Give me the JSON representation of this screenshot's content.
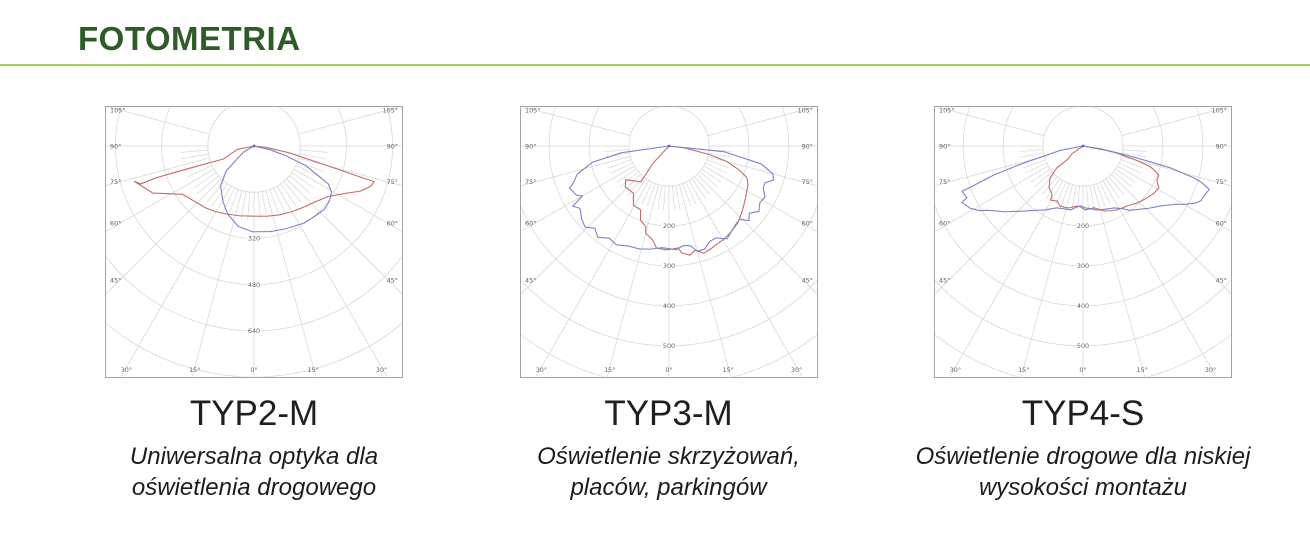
{
  "header": {
    "title": "FOTOMETRIA"
  },
  "colors": {
    "title_green": "#2d5c26",
    "rule_green": "#a7cd67",
    "grid": "#d8d8d8",
    "chart_border": "#a3a3a3",
    "tick_label": "#5f5f5f",
    "red_curve": "#c0706a",
    "blue_curve": "#8181c4",
    "apex_dot": "#6565b5"
  },
  "chart_data": [
    {
      "type": "line",
      "polar": true,
      "title": "TYP2-M",
      "subtitle": "Uniwersalna optyka dla oświetlenia drogowego",
      "angle_ticks_deg": [
        0,
        15,
        30,
        45,
        60,
        75,
        90,
        105
      ],
      "radial_ticks": [
        320,
        480,
        640
      ],
      "radial_step": 160,
      "axis_range_units": 800,
      "grid": true,
      "legend": "none",
      "series": [
        {
          "name": "red-curve",
          "color": "#c0706a",
          "points": [
            [
              -86,
              0
            ],
            [
              -78,
              60
            ],
            [
              -67,
              115
            ],
            [
              -71,
              236
            ],
            [
              -72,
              358
            ],
            [
              -71.5,
              414
            ],
            [
              -73.5,
              432
            ],
            [
              -65,
              386
            ],
            [
              -56,
              299
            ],
            [
              -47,
              281
            ],
            [
              -38,
              272
            ],
            [
              -30,
              263
            ],
            [
              -22,
              254
            ],
            [
              -12,
              247
            ],
            [
              0,
              243
            ],
            [
              10,
              247
            ],
            [
              20,
              254
            ],
            [
              30,
              263
            ],
            [
              40,
              274
            ],
            [
              48,
              288
            ],
            [
              56,
              312
            ],
            [
              62,
              352
            ],
            [
              67,
              400
            ],
            [
              71,
              428
            ],
            [
              73.5,
              434
            ],
            [
              73.8,
              372
            ],
            [
              74.5,
              300
            ],
            [
              75.5,
              232
            ],
            [
              79,
              124
            ],
            [
              84,
              40
            ],
            [
              87,
              0
            ]
          ]
        },
        {
          "name": "blue-curve",
          "color": "#8181c4",
          "points": [
            [
              -80,
              0
            ],
            [
              -60,
              40
            ],
            [
              -53,
              72
            ],
            [
              -48,
              130
            ],
            [
              -40,
              180
            ],
            [
              -29,
              221
            ],
            [
              -21,
              253
            ],
            [
              -11,
              284
            ],
            [
              -1,
              297
            ],
            [
              11,
              302
            ],
            [
              21,
              307
            ],
            [
              33,
              318
            ],
            [
              41,
              322
            ],
            [
              48,
              328
            ],
            [
              54,
              323
            ],
            [
              59,
              313
            ],
            [
              63,
              289
            ],
            [
              65,
              249
            ],
            [
              69,
              194
            ],
            [
              73,
              117
            ],
            [
              77,
              55
            ],
            [
              81,
              0
            ]
          ]
        }
      ]
    },
    {
      "type": "line",
      "polar": true,
      "title": "TYP3-M",
      "subtitle": "Oświetlenie skrzyżowań, placów, parkingów",
      "angle_ticks_deg": [
        0,
        15,
        30,
        45,
        60,
        75,
        90,
        105
      ],
      "radial_ticks": [
        200,
        300,
        400,
        500
      ],
      "radial_step": 100,
      "axis_range_units": 578,
      "grid": true,
      "legend": "none",
      "series": [
        {
          "name": "red-curve",
          "color": "#c0706a",
          "points": [
            [
              -86,
              0
            ],
            [
              -43,
              58
            ],
            [
              -38,
              114
            ],
            [
              -52,
              137
            ],
            [
              -47,
              150
            ],
            [
              -37,
              148
            ],
            [
              -31,
              173
            ],
            [
              -24,
              175
            ],
            [
              -21,
              199
            ],
            [
              -16,
              210
            ],
            [
              -15,
              226
            ],
            [
              -10,
              238
            ],
            [
              -7,
              257
            ],
            [
              -2,
              260
            ],
            [
              2,
              258
            ],
            [
              5,
              256
            ],
            [
              7,
              270
            ],
            [
              11,
              278
            ],
            [
              14,
              269
            ],
            [
              18,
              282
            ],
            [
              22,
              278
            ],
            [
              26,
              273
            ],
            [
              30,
              271
            ],
            [
              35,
              266
            ],
            [
              42,
              258
            ],
            [
              49,
              244
            ],
            [
              56,
              231
            ],
            [
              64,
              220
            ],
            [
              68,
              210
            ],
            [
              71,
              187
            ],
            [
              75,
              150
            ],
            [
              78,
              105
            ],
            [
              83,
              40
            ],
            [
              86,
              0
            ]
          ]
        },
        {
          "name": "blue-curve",
          "color": "#8181c4",
          "points": [
            [
              -86,
              0
            ],
            [
              -82,
              120
            ],
            [
              -78,
              196
            ],
            [
              -73,
              240
            ],
            [
              -69,
              256
            ],
            [
              -67,
              270
            ],
            [
              -62,
              262
            ],
            [
              -60,
              250
            ],
            [
              -58,
              284
            ],
            [
              -55,
              272
            ],
            [
              -50,
              285
            ],
            [
              -46,
              292
            ],
            [
              -42,
              277
            ],
            [
              -38,
              290
            ],
            [
              -33,
              275
            ],
            [
              -28,
              280
            ],
            [
              -22,
              270
            ],
            [
              -16,
              268
            ],
            [
              -10,
              262
            ],
            [
              -4,
              255
            ],
            [
              0,
              257
            ],
            [
              4,
              260
            ],
            [
              8,
              252
            ],
            [
              12,
              255
            ],
            [
              15,
              272
            ],
            [
              19,
              273
            ],
            [
              23,
              260
            ],
            [
              27,
              258
            ],
            [
              32,
              274
            ],
            [
              36,
              265
            ],
            [
              40,
              258
            ],
            [
              44,
              255
            ],
            [
              47,
              274
            ],
            [
              50,
              262
            ],
            [
              54,
              278
            ],
            [
              58,
              268
            ],
            [
              62,
              272
            ],
            [
              66,
              258
            ],
            [
              69,
              257
            ],
            [
              72,
              275
            ],
            [
              75,
              269
            ],
            [
              79,
              235
            ],
            [
              84,
              140
            ],
            [
              88,
              0
            ]
          ]
        }
      ]
    },
    {
      "type": "line",
      "polar": true,
      "title": "TYP4-S",
      "subtitle": "Oświetlenie drogowe dla niskiej wysokości montażu",
      "angle_ticks_deg": [
        0,
        15,
        30,
        45,
        60,
        75,
        90,
        105
      ],
      "radial_ticks": [
        200,
        300,
        400,
        500
      ],
      "radial_step": 100,
      "axis_range_units": 578,
      "grid": true,
      "legend": "none",
      "series": [
        {
          "name": "red-curve",
          "color": "#c0706a",
          "points": [
            [
              -82,
              0
            ],
            [
              -55,
              35
            ],
            [
              -49,
              46
            ],
            [
              -50,
              85
            ],
            [
              -46,
              115
            ],
            [
              -39,
              135
            ],
            [
              -34,
              141
            ],
            [
              -32,
              146
            ],
            [
              -31,
              158
            ],
            [
              -25,
              152
            ],
            [
              -21,
              161
            ],
            [
              -15,
              160
            ],
            [
              -12,
              158
            ],
            [
              -6,
              151
            ],
            [
              -2,
              153
            ],
            [
              2,
              160
            ],
            [
              6,
              158
            ],
            [
              10,
              157
            ],
            [
              14,
              163
            ],
            [
              18,
              171
            ],
            [
              23,
              176
            ],
            [
              28,
              181
            ],
            [
              33,
              184
            ],
            [
              36,
              186
            ],
            [
              40,
              191
            ],
            [
              43,
              196
            ],
            [
              47,
              201
            ],
            [
              51,
              206
            ],
            [
              56,
              213
            ],
            [
              61,
              217
            ],
            [
              63,
              210
            ],
            [
              65,
              204
            ],
            [
              69,
              203
            ],
            [
              71,
              190
            ],
            [
              73,
              175
            ],
            [
              75,
              140
            ],
            [
              78,
              87
            ],
            [
              81,
              45
            ],
            [
              84,
              0
            ]
          ]
        },
        {
          "name": "blue-curve",
          "color": "#8181c4",
          "points": [
            [
              -84,
              0
            ],
            [
              -79,
              60
            ],
            [
              -76,
              90
            ],
            [
              -74,
              154
            ],
            [
              -72,
              234
            ],
            [
              -70,
              296
            ],
            [
              -69.5,
              323
            ],
            [
              -66,
              318
            ],
            [
              -65,
              334
            ],
            [
              -61,
              322
            ],
            [
              -58,
              305
            ],
            [
              -56,
              288
            ],
            [
              -50,
              256
            ],
            [
              -42,
              219
            ],
            [
              -35,
              196
            ],
            [
              -31,
              187
            ],
            [
              -23,
              168
            ],
            [
              -16,
              164
            ],
            [
              -11,
              163
            ],
            [
              -5,
              152
            ],
            [
              -2,
              150
            ],
            [
              2,
              155
            ],
            [
              7,
              158
            ],
            [
              12,
              164
            ],
            [
              20,
              168
            ],
            [
              27,
              174
            ],
            [
              32,
              185
            ],
            [
              36,
              199
            ],
            [
              42,
              213
            ],
            [
              47,
              228
            ],
            [
              52,
              244
            ],
            [
              55,
              258
            ],
            [
              58,
              275
            ],
            [
              60,
              292
            ],
            [
              63,
              315
            ],
            [
              65,
              325
            ],
            [
              67,
              327
            ],
            [
              69,
              330
            ],
            [
              71,
              334
            ],
            [
              73,
              310
            ],
            [
              74,
              289
            ],
            [
              76,
              224
            ],
            [
              77.5,
              138
            ],
            [
              79.5,
              69
            ],
            [
              83,
              0
            ]
          ]
        }
      ]
    }
  ]
}
